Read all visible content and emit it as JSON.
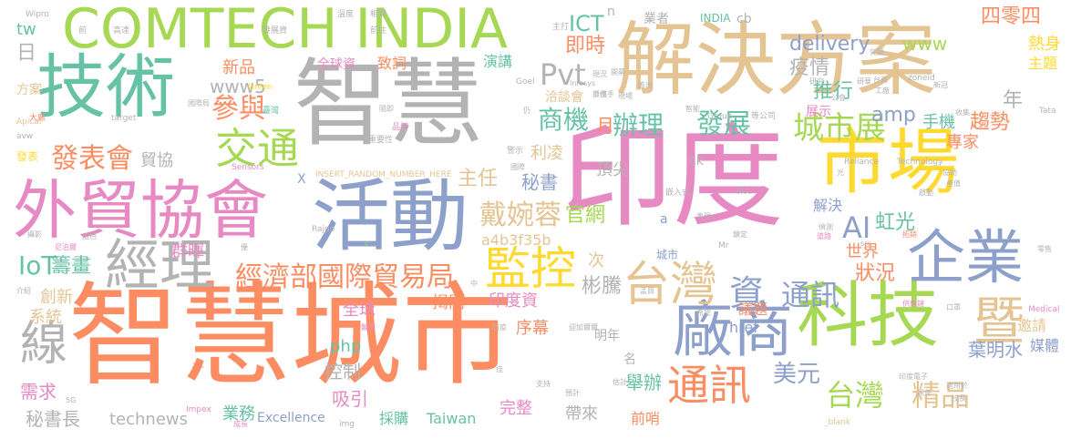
{
  "palette": {
    "orange": "#fc8d62",
    "gray": "#b3b3b3",
    "pink": "#e78ac3",
    "green": "#a6d854",
    "teal": "#66c2a5",
    "blue": "#8da0cb",
    "yellow": "#ffd92f",
    "tan": "#e5c494"
  },
  "words": {
    "w1": "智慧城市",
    "w2": "智慧",
    "w3": "印度",
    "w4": "解決方案",
    "w5": "COMTECH INDIA",
    "w6": "技術",
    "w7": "市場",
    "w8": "外貿協會",
    "w9": "活動",
    "w10": "科技",
    "w11": "企業",
    "w12": "廠商",
    "w13": "經理",
    "w14": "台灣",
    "w15": "監控",
    "w16": "交通",
    "w17": "通訊",
    "w18": "線",
    "w19": "暨",
    "w20": "城市展",
    "w21": "發表會",
    "w22": "經濟部國際貿易局",
    "w23": "戴婉蓉",
    "w24": "台灣",
    "w25": "精品",
    "w26": "資",
    "w27": "通訊",
    "w28": "參與",
    "w29": "Pvt",
    "w30": "發展",
    "w31": "商機",
    "w32": "辦理",
    "w33": "AI",
    "w34": "IoT",
    "w35": "美元",
    "w36": "www5",
    "w37": "delivery",
    "w38": "www",
    "w39": "四零四",
    "w40": "疫情",
    "w41": "推行",
    "w42": "手機",
    "w43": "趨勢",
    "w44": "專家",
    "w45": "年",
    "w46": "熱身",
    "w47": "主題",
    "w48": "即時",
    "w49": "ICT",
    "w50": "amp",
    "w51": "狀況",
    "w52": "世界",
    "w53": "虹光",
    "w54": "葉明水",
    "w55": "邀請",
    "w56": "媒體",
    "w57": "群暉",
    "w58": "籌畫",
    "w59": "主任",
    "w60": "秘書",
    "w61": "官網",
    "w62": "創新",
    "w63": "系統",
    "w64": "全球",
    "w65": "php",
    "w66": "控制",
    "w67": "吸引",
    "w68": "需求",
    "w69": "秘書長",
    "w70": "technews",
    "w71": "業務",
    "w72": "Excellence",
    "w73": "Taiwan",
    "w74": "完整",
    "w75": "帶來",
    "w76": "前哨",
    "w77": "舉辦",
    "w78": "採購",
    "w79": "序幕",
    "w80": "印度資",
    "w81": "揭開",
    "w82": "彬騰",
    "w83": "次",
    "w84": "a4b3f35b",
    "w85": "解決",
    "w86": "頂尖",
    "w87": "利凌",
    "w88": "月",
    "w89": "貿協",
    "w90": "新品",
    "w91": "全球資",
    "w92": "致詞",
    "w93": "演講",
    "w94": "洽談會",
    "w95": "展示",
    "w96": "tw",
    "w97": "日",
    "w98": "方案",
    "w99": "發表",
    "w100": "城市",
    "w101": "議題",
    "w102": "href",
    "w103": "明年",
    "w104": "名",
    "w105": "千",
    "w106": "業者",
    "w107": "INDIA",
    "w108": "cb",
    "w109": "n",
    "w110": "ck",
    "w111": "X",
    "w112": "a",
    "w113": "Green",
    "w114": "Wipro",
    "w115": "Goel",
    "w116": "Infosys",
    "w117": "Reliance",
    "w118": "Technology",
    "w119": "Tata",
    "w120": "Apical",
    "w121": "avw",
    "w122": "Sensors",
    "w123": "INSERT_RANDOM_NUMBER_HERE",
    "w124": "target",
    "w125": "Rajoo",
    "w126": "Impex",
    "w127": "Medical",
    "w128": "img",
    "w129": "_blank",
    "w130": "5G",
    "w131": "Mr",
    "w132": "Group",
    "w133": "zoneid",
    "w134": "src",
    "w135": "c",
    "w136": "主打",
    "w137": "前",
    "w138": "高達",
    "w139": "發展資",
    "w140": "相關",
    "w141": "前往",
    "w142": "溫度",
    "w143": "大廠",
    "w144": "國際局",
    "w145": "臺灣",
    "w146": "重要性",
    "w147": "品牌",
    "w148": "國際",
    "w149": "警示",
    "w150": "智能",
    "w151": "等公司",
    "w152": "嵌入式",
    "w153": "表現",
    "w154": "鎖定",
    "w155": "偵測",
    "w156": "道路",
    "w157": "拓銷",
    "w158": "供應鏈",
    "w159": "口罩",
    "w160": "適用於",
    "w161": "印度電子",
    "w162": "成長",
    "w163": "預計",
    "w164": "估計",
    "w165": "支持",
    "w166": "防疫",
    "w167": "醫院",
    "w168": "迎加爾爾",
    "w169": "介紹",
    "w170": "尼泊爾",
    "w171": "出色",
    "w172": "攝影",
    "w173": "研華",
    "w174": "工廠",
    "w175": "新冠",
    "w176": "公會",
    "w177": "協助",
    "w178": "肺炎",
    "w179": "啟動",
    "w180": "產值",
    "w181": "零售",
    "w182": "收集",
    "w183": "突顯",
    "w184": "台商",
    "w185": "隨即",
    "w186": "攤位",
    "w187": "現況",
    "w188": "孟買",
    "w189": "希望",
    "w190": "研究",
    "w191": "校長",
    "w192": "攜手",
    "w193": "開幕",
    "w194": "現場",
    "w195": "訊息",
    "w196": "推出",
    "w197": "仍",
    "w198": "優",
    "w199": "光",
    "w200": "中",
    "w201": "佳"
  }
}
